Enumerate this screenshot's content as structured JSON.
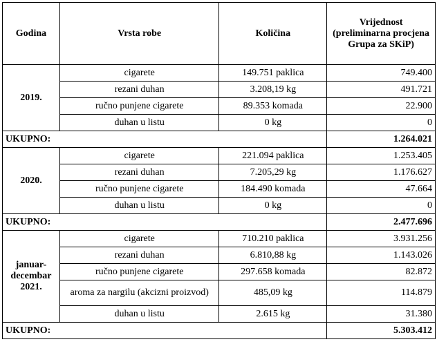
{
  "header": {
    "year": "Godina",
    "type": "Vrsta robe",
    "qty": "Količina",
    "value": "Vrijednost (preliminarna procjena Grupa za SKiP)"
  },
  "total_label": "UKUPNO:",
  "groups": [
    {
      "year": "2019.",
      "rows": [
        {
          "type": "cigarete",
          "qty": "149.751 paklica",
          "value": "749.400"
        },
        {
          "type": "rezani duhan",
          "qty": "3.208,19 kg",
          "value": "491.721"
        },
        {
          "type": "ručno punjene cigarete",
          "qty": "89.353 komada",
          "value": "22.900"
        },
        {
          "type": "duhan u listu",
          "qty": "0 kg",
          "value": "0"
        }
      ],
      "total": "1.264.021"
    },
    {
      "year": "2020.",
      "rows": [
        {
          "type": "cigarete",
          "qty": "221.094 paklica",
          "value": "1.253.405"
        },
        {
          "type": "rezani duhan",
          "qty": "7.205,29 kg",
          "value": "1.176.627"
        },
        {
          "type": "ručno punjene cigarete",
          "qty": "184.490 komada",
          "value": "47.664"
        },
        {
          "type": "duhan u listu",
          "qty": "0 kg",
          "value": "0"
        }
      ],
      "total": "2.477.696"
    },
    {
      "year": "januar-decembar 2021.",
      "rows": [
        {
          "type": "cigarete",
          "qty": "710.210 paklica",
          "value": "3.931.256"
        },
        {
          "type": "rezani duhan",
          "qty": "6.810,88 kg",
          "value": "1.143.026"
        },
        {
          "type": "ručno punjene cigarete",
          "qty": "297.658 komada",
          "value": "82.872"
        },
        {
          "type": "aroma za nargilu (akcizni proizvod)",
          "qty": "485,09 kg",
          "value": "114.879"
        },
        {
          "type": "duhan u listu",
          "qty": "2.615 kg",
          "value": "31.380"
        }
      ],
      "total": "5.303.412"
    }
  ]
}
